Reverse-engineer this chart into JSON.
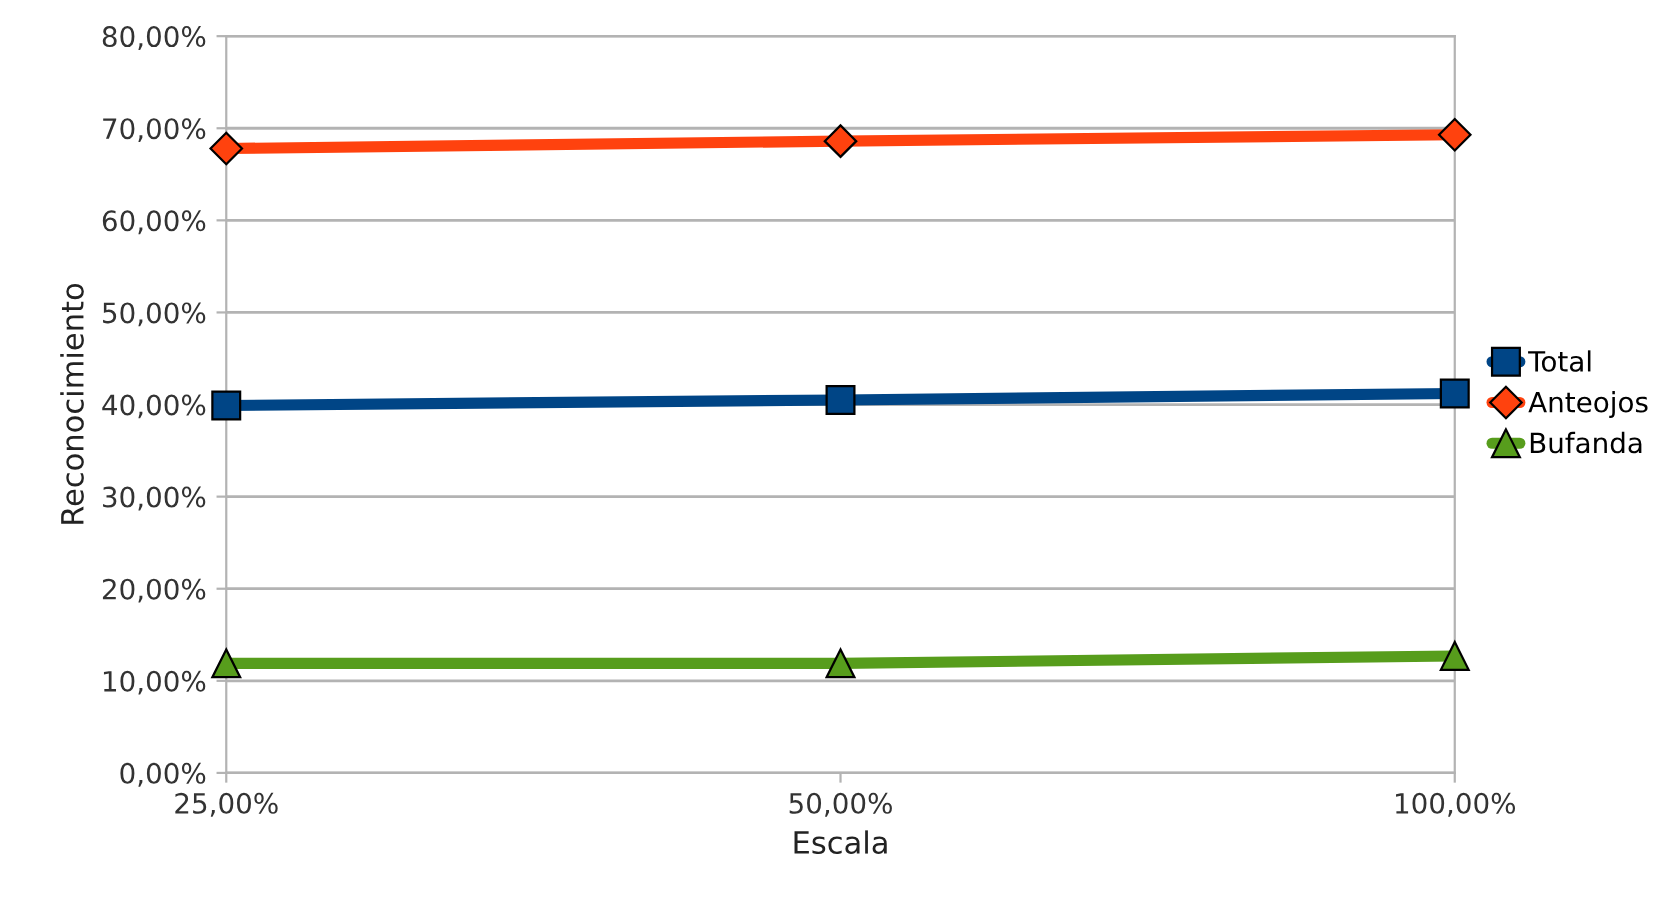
{
  "chart_data": {
    "type": "line",
    "xlabel": "Escala",
    "ylabel": "Reconocimiento",
    "categories": [
      "25,00%",
      "50,00%",
      "100,00%"
    ],
    "series": [
      {
        "name": "Total",
        "color": "#004586",
        "marker": "square",
        "values": [
          39.9,
          40.5,
          41.2
        ]
      },
      {
        "name": "Anteojos",
        "color": "#ff420e",
        "marker": "diamond",
        "values": [
          67.8,
          68.6,
          69.3
        ]
      },
      {
        "name": "Bufanda",
        "color": "#579d1c",
        "marker": "triangle",
        "values": [
          11.9,
          11.9,
          12.7
        ]
      }
    ],
    "ylim": [
      0,
      80
    ],
    "yticks": [
      {
        "value": 0,
        "label": "0,00%"
      },
      {
        "value": 10,
        "label": "10,00%"
      },
      {
        "value": 20,
        "label": "20,00%"
      },
      {
        "value": 30,
        "label": "30,00%"
      },
      {
        "value": 40,
        "label": "40,00%"
      },
      {
        "value": 50,
        "label": "50,00%"
      },
      {
        "value": 60,
        "label": "60,00%"
      },
      {
        "value": 70,
        "label": "70,00%"
      },
      {
        "value": 80,
        "label": "80,00%"
      }
    ],
    "grid": "y",
    "legend": "right",
    "line_style": "solid"
  }
}
